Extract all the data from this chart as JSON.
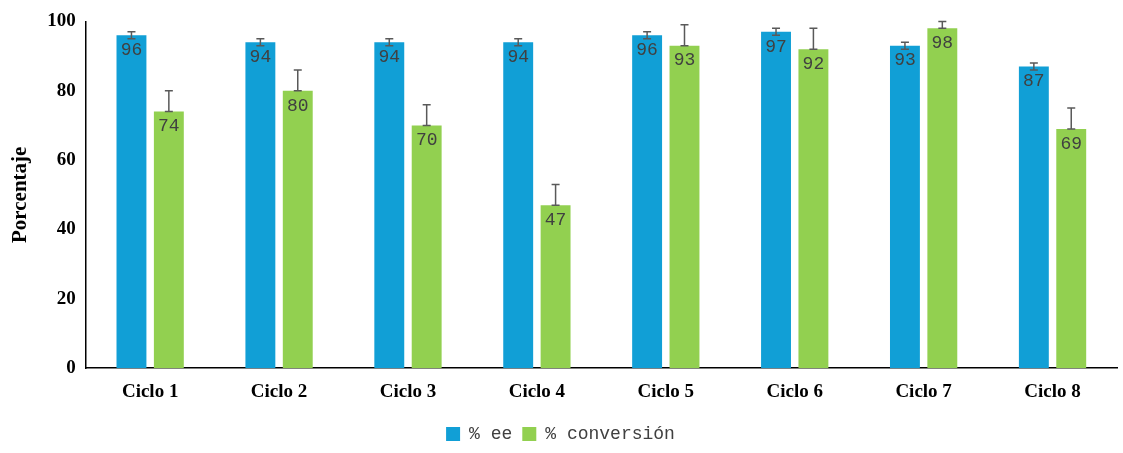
{
  "chart_data": {
    "type": "bar",
    "ylabel": "Porcentaje",
    "categories": [
      "Ciclo 1",
      "Ciclo 2",
      "Ciclo 3",
      "Ciclo 4",
      "Ciclo 5",
      "Ciclo 6",
      "Ciclo 7",
      "Ciclo 8"
    ],
    "series": [
      {
        "name": "% ee",
        "color": "#119fd6",
        "values": [
          96,
          94,
          94,
          94,
          96,
          97,
          93,
          87
        ],
        "errors": [
          1,
          1,
          1,
          1,
          1,
          1,
          1,
          1
        ]
      },
      {
        "name": "% conversión",
        "color": "#92d050",
        "values": [
          74,
          80,
          70,
          47,
          93,
          92,
          98,
          69
        ],
        "errors": [
          [
            74,
            80
          ],
          [
            80,
            86
          ],
          [
            70,
            76
          ],
          [
            47,
            53
          ],
          [
            93,
            99
          ],
          [
            92,
            98
          ],
          [
            98,
            100
          ],
          [
            69,
            75
          ]
        ]
      }
    ],
    "ylim": [
      0,
      100
    ],
    "yticks": [
      0,
      20,
      40,
      60,
      80,
      100
    ],
    "grid": false,
    "legend": "bottom",
    "data_labels": true
  }
}
